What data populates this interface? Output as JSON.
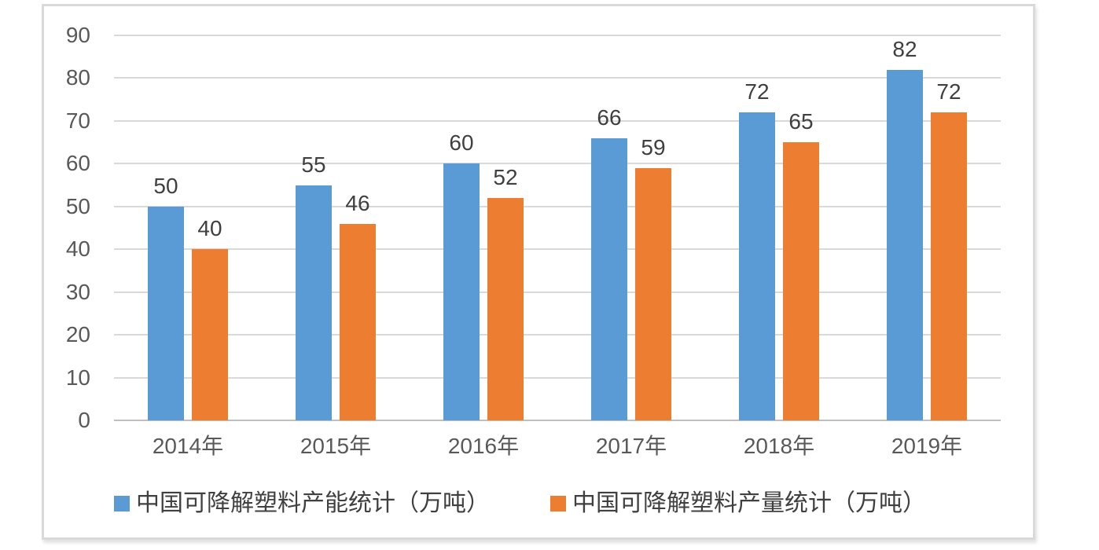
{
  "chart_data": {
    "type": "bar",
    "categories": [
      "2014年",
      "2015年",
      "2016年",
      "2017年",
      "2018年",
      "2019年"
    ],
    "series": [
      {
        "name": "中国可降解塑料产能统计（万吨）",
        "color": "#5B9BD5",
        "values": [
          50,
          55,
          60,
          66,
          72,
          82
        ]
      },
      {
        "name": "中国可降解塑料产量统计（万吨）",
        "color": "#ED7D31",
        "values": [
          40,
          46,
          52,
          59,
          65,
          72
        ]
      }
    ],
    "title": "",
    "xlabel": "",
    "ylabel": "",
    "ylim": [
      0,
      90
    ],
    "ytick_step": 10,
    "yticks": [
      0,
      10,
      20,
      30,
      40,
      50,
      60,
      70,
      80,
      90
    ],
    "grid": true,
    "data_labels": true,
    "legend_position": "bottom"
  },
  "colors": {
    "background": "#FFFFFF",
    "gridline": "#D9D9D9",
    "axis_line": "#BFBFBF",
    "axis_text": "#595959",
    "data_label_text": "#404040",
    "frame_border": "#D9D9D9"
  }
}
